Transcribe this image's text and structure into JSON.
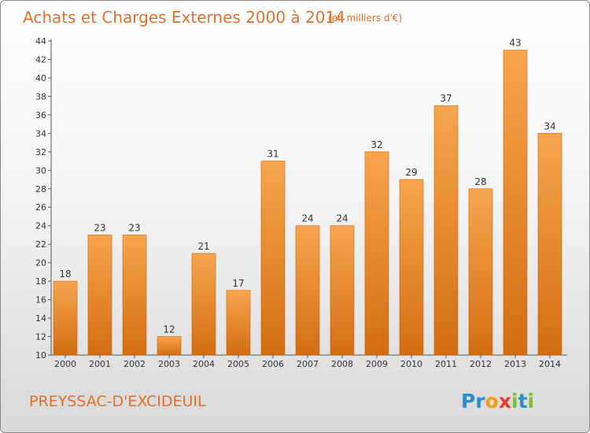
{
  "chart_data": {
    "type": "bar",
    "title": "Achats et Charges Externes 2000 à 2014",
    "subtitle": "(en milliers d'€)",
    "categories": [
      "2000",
      "2001",
      "2002",
      "2003",
      "2004",
      "2005",
      "2006",
      "2007",
      "2008",
      "2009",
      "2010",
      "2011",
      "2012",
      "2013",
      "2014"
    ],
    "values": [
      18,
      23,
      23,
      12,
      21,
      17,
      31,
      24,
      24,
      32,
      29,
      37,
      28,
      43,
      34
    ],
    "ylim": [
      10,
      44
    ],
    "yticks": [
      10,
      12,
      14,
      16,
      18,
      20,
      22,
      24,
      26,
      28,
      30,
      32,
      34,
      36,
      38,
      40,
      42,
      44
    ],
    "grid": false,
    "data_labels": true,
    "bar_color_top": "#f7a54f",
    "bar_color_bottom": "#d26e12"
  },
  "footer": {
    "commune": "PREYSSAC-D'EXCIDEUIL",
    "logo_letters": [
      {
        "char": "P",
        "color": "#2f8ec8"
      },
      {
        "char": "r",
        "color": "#2f8ec8"
      },
      {
        "char": "o",
        "color": "#f39c1a"
      },
      {
        "char": "x",
        "color": "#e63a2b"
      },
      {
        "char": "i",
        "color": "#7cbd3a"
      },
      {
        "char": "t",
        "color": "#2f8ec8"
      },
      {
        "char": "i",
        "color": "#7cbd3a"
      }
    ]
  }
}
